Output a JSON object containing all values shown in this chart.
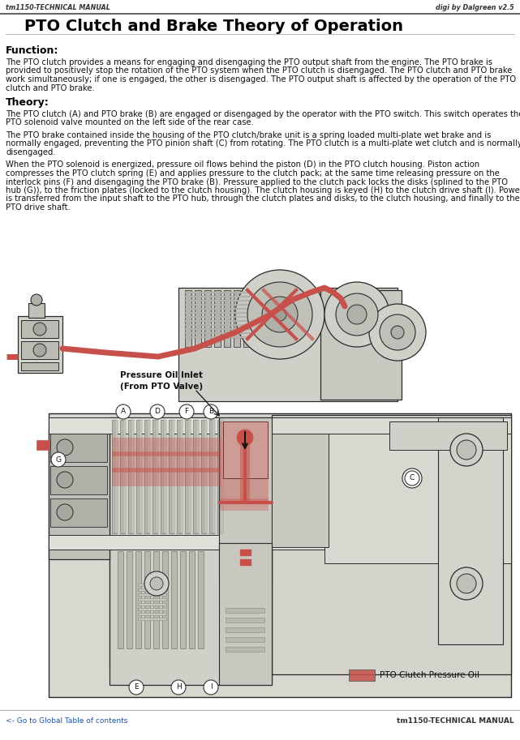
{
  "header_left": "tm1150-TECHNICAL MANUAL",
  "header_right": "digi by Dalgreen v2.5",
  "title": "PTO Clutch and Brake Theory of Operation",
  "section1_heading": "Function:",
  "section1_body": [
    "The PTO clutch provides a means for engaging and disengaging the PTO output shaft from the engine. The PTO brake is",
    "provided to positively stop the rotation of the PTO system when the PTO clutch is disengaged. The PTO clutch and PTO brake",
    "work simultaneously; if one is engaged, the other is disengaged. The PTO output shaft is affected by the operation of the PTO",
    "clutch and PTO brake."
  ],
  "section2_heading": "Theory:",
  "section2_body": [
    "The PTO clutch (A) and PTO brake (B) are engaged or disengaged by the operator with the PTO switch. This switch operates the",
    "PTO solenoid valve mounted on the left side of the rear case.",
    "",
    "The PTO brake contained inside the housing of the PTO clutch/brake unit is a spring loaded multi-plate wet brake and is",
    "normally engaged, preventing the PTO pinion shaft (C) from rotating. The PTO clutch is a multi-plate wet clutch and is normally",
    "disengaged.",
    "",
    "When the PTO solenoid is energized, pressure oil flows behind the piston (D) in the PTO clutch housing. Piston action",
    "compresses the PTO clutch spring (E) and applies pressure to the clutch pack; at the same time releasing pressure on the",
    "interlock pins (F) and disengaging the PTO brake (B). Pressure applied to the clutch pack locks the disks (splined to the PTO",
    "hub (G)), to the friction plates (locked to the clutch housing). The clutch housing is keyed (H) to the clutch drive shaft (I). Power",
    "is transferred from the input shaft to the PTO hub, through the clutch plates and disks, to the clutch housing, and finally to the",
    "PTO drive shaft."
  ],
  "legend_label": "PTO Clutch Pressure Oil",
  "legend_color": "#c8504a",
  "footer_left": "<- Go to Global Table of contents",
  "footer_right": "tm1150-TECHNICAL MANUAL",
  "bg_color": "#ffffff",
  "border_color": "#aaaaaa",
  "title_color": "#000000",
  "heading_color": "#000000",
  "body_color": "#111111",
  "header_color": "#333333",
  "link_color": "#2255aa",
  "body_fontsize": 7.2,
  "title_fontsize": 14,
  "heading_fontsize": 9,
  "header_fontsize": 5.8,
  "footer_fontsize": 6.5
}
